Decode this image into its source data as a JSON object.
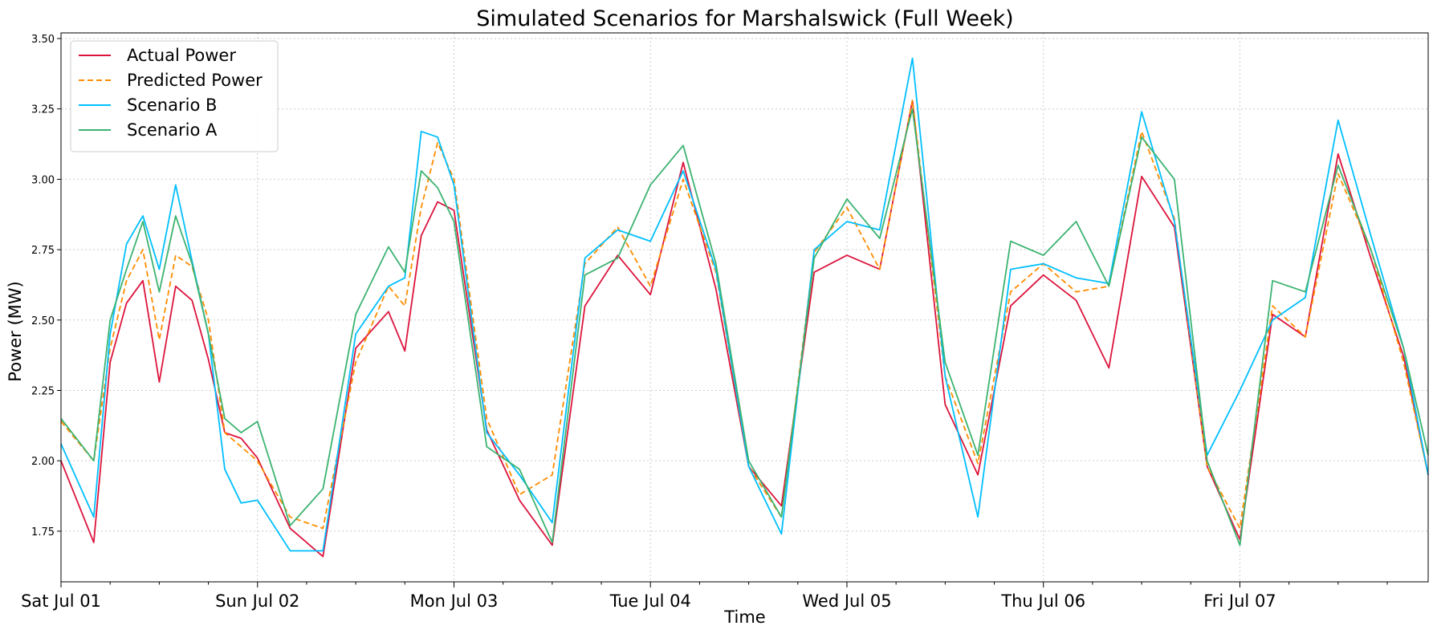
{
  "chart_data": {
    "type": "line",
    "title": "Simulated Scenarios for Marshalswick (Full Week)",
    "xlabel": "Time",
    "ylabel": "Power (MW)",
    "x_hours": [
      0,
      4,
      6,
      8,
      10,
      12,
      14,
      16,
      18,
      20,
      22,
      24,
      28,
      32,
      36,
      40,
      42,
      44,
      46,
      48,
      52,
      56,
      60,
      64,
      68,
      72,
      76,
      80,
      84,
      88,
      92,
      96,
      100,
      104,
      108,
      112,
      116,
      120,
      124,
      128,
      132,
      136,
      140,
      144,
      148,
      152,
      156,
      160,
      164,
      167
    ],
    "x_tick_positions": [
      0,
      24,
      48,
      72,
      96,
      120,
      144
    ],
    "x_tick_labels": [
      "Sat Jul 01",
      "Sun Jul 02",
      "Mon Jul 03",
      "Tue Jul 04",
      "Wed Jul 05",
      "Thu Jul 06",
      "Fri Jul 07"
    ],
    "xlim": [
      0,
      167
    ],
    "ylim": [
      1.57,
      3.52
    ],
    "yticks": [
      1.75,
      2.0,
      2.25,
      2.5,
      2.75,
      3.0,
      3.25,
      3.5
    ],
    "ytick_labels": [
      "1.75",
      "2.00",
      "2.25",
      "2.50",
      "2.75",
      "3.00",
      "3.25",
      "3.50"
    ],
    "grid": true,
    "legend_position": "top-left",
    "series": [
      {
        "name": "Actual Power",
        "color": "#dc143c",
        "dash": "solid",
        "values": [
          2.0,
          1.71,
          2.35,
          2.56,
          2.64,
          2.28,
          2.62,
          2.57,
          2.36,
          2.1,
          2.08,
          2.01,
          1.76,
          1.66,
          2.4,
          2.53,
          2.39,
          2.8,
          2.92,
          2.89,
          2.11,
          1.86,
          1.7,
          2.55,
          2.73,
          2.59,
          3.06,
          2.61,
          1.98,
          1.84,
          2.67,
          2.73,
          2.68,
          3.28,
          2.2,
          1.95,
          2.55,
          2.66,
          2.57,
          2.33,
          3.01,
          2.83,
          1.98,
          1.72,
          2.52,
          2.44,
          3.09,
          2.72,
          2.37,
          1.95
        ]
      },
      {
        "name": "Predicted Power",
        "color": "#ff8c00",
        "dash": "dashed",
        "values": [
          2.14,
          2.0,
          2.4,
          2.64,
          2.75,
          2.43,
          2.73,
          2.69,
          2.5,
          2.1,
          2.05,
          2.0,
          1.8,
          1.76,
          2.35,
          2.62,
          2.55,
          2.9,
          3.13,
          3.0,
          2.15,
          1.88,
          1.95,
          2.7,
          2.83,
          2.62,
          3.0,
          2.67,
          1.98,
          1.8,
          2.74,
          2.9,
          2.68,
          3.28,
          2.3,
          1.99,
          2.6,
          2.7,
          2.6,
          2.62,
          3.17,
          2.86,
          1.98,
          1.76,
          2.55,
          2.44,
          3.02,
          2.75,
          2.35,
          1.95
        ]
      },
      {
        "name": "Scenario B",
        "color": "#00bfff",
        "dash": "solid",
        "values": [
          2.06,
          1.8,
          2.45,
          2.77,
          2.87,
          2.68,
          2.98,
          2.71,
          2.45,
          1.97,
          1.85,
          1.86,
          1.68,
          1.68,
          2.45,
          2.62,
          2.65,
          3.17,
          3.15,
          2.98,
          2.1,
          1.95,
          1.78,
          2.72,
          2.82,
          2.78,
          3.03,
          2.68,
          1.98,
          1.74,
          2.75,
          2.85,
          2.82,
          3.43,
          2.3,
          1.8,
          2.68,
          2.7,
          2.65,
          2.63,
          3.24,
          2.85,
          2.02,
          2.25,
          2.5,
          2.58,
          3.21,
          2.8,
          2.4,
          1.95
        ]
      },
      {
        "name": "Scenario A",
        "color": "#3cb371",
        "dash": "solid",
        "values": [
          2.15,
          2.0,
          2.5,
          2.68,
          2.85,
          2.6,
          2.87,
          2.7,
          2.45,
          2.15,
          2.1,
          2.14,
          1.77,
          1.9,
          2.52,
          2.76,
          2.67,
          3.03,
          2.97,
          2.85,
          2.05,
          1.97,
          1.71,
          2.66,
          2.72,
          2.98,
          3.12,
          2.7,
          2.0,
          1.8,
          2.72,
          2.93,
          2.79,
          3.25,
          2.35,
          2.02,
          2.78,
          2.73,
          2.85,
          2.62,
          3.15,
          3.0,
          2.0,
          1.7,
          2.64,
          2.6,
          3.05,
          2.75,
          2.4,
          2.02
        ]
      }
    ]
  }
}
